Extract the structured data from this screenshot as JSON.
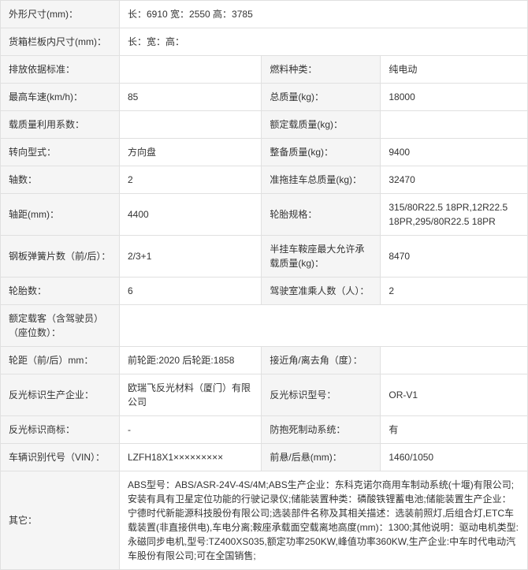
{
  "r1": {
    "l": "外形尺寸(mm)：",
    "v": "长：6910 宽：2550 高：3785"
  },
  "r2": {
    "l": "货箱栏板内尺寸(mm)：",
    "v": "长：宽：高："
  },
  "r3": {
    "l1": "排放依据标准：",
    "v1": "",
    "l2": "燃料种类：",
    "v2": "纯电动"
  },
  "r4": {
    "l1": "最高车速(km/h)：",
    "v1": "85",
    "l2": "总质量(kg)：",
    "v2": "18000"
  },
  "r5": {
    "l1": "载质量利用系数：",
    "v1": "",
    "l2": "额定载质量(kg)：",
    "v2": ""
  },
  "r6": {
    "l1": "转向型式：",
    "v1": "方向盘",
    "l2": "整备质量(kg)：",
    "v2": "9400"
  },
  "r7": {
    "l1": "轴数：",
    "v1": "2",
    "l2": "准拖挂车总质量(kg)：",
    "v2": "32470"
  },
  "r8": {
    "l1": "轴距(mm)：",
    "v1": "4400",
    "l2": "轮胎规格：",
    "v2": "315/80R22.5 18PR,12R22.5 18PR,295/80R22.5 18PR"
  },
  "r9": {
    "l1": "钢板弹簧片数（前/后）：",
    "v1": "2/3+1",
    "l2": "半挂车鞍座最大允许承载质量(kg)：",
    "v2": "8470"
  },
  "r10": {
    "l1": "轮胎数：",
    "v1": "6",
    "l2": "驾驶室准乘人数（人）：",
    "v2": "2"
  },
  "r11": {
    "l": "额定载客（含驾驶员）（座位数）：",
    "v": ""
  },
  "r12": {
    "l1": "轮距（前/后）mm：",
    "v1": "前轮距:2020 后轮距:1858",
    "l2": "接近角/离去角（度）：",
    "v2": ""
  },
  "r13": {
    "l1": "反光标识生产企业：",
    "v1": "欧瑞飞反光材料（厦门）有限公司",
    "l2": "反光标识型号：",
    "v2": "OR-V1"
  },
  "r14": {
    "l1": "反光标识商标：",
    "v1": "-",
    "l2": "防抱死制动系统：",
    "v2": "有"
  },
  "r15": {
    "l1": "车辆识别代号（VIN）：",
    "v1": "LZFH18X1×××××××××",
    "l2": "前悬/后悬(mm)：",
    "v2": "1460/1050"
  },
  "r16": {
    "l": "其它：",
    "v": "ABS型号：ABS/ASR-24V-4S/4M;ABS生产企业：东科克诺尔商用车制动系统(十堰)有限公司;安装有具有卫星定位功能的行驶记录仪;储能装置种类：磷酸铁锂蓄电池;储能装置生产企业：宁德时代新能源科技股份有限公司;选装部件名称及其相关描述：选装前照灯,后组合灯,ETC车载装置(非直接供电),车电分离;鞍座承载面空载离地高度(mm)：1300;其他说明：驱动电机类型:永磁同步电机,型号:TZ400XS035,额定功率250KW,峰值功率360KW,生产企业:中车时代电动汽车股份有限公司;可在全国销售;"
  }
}
